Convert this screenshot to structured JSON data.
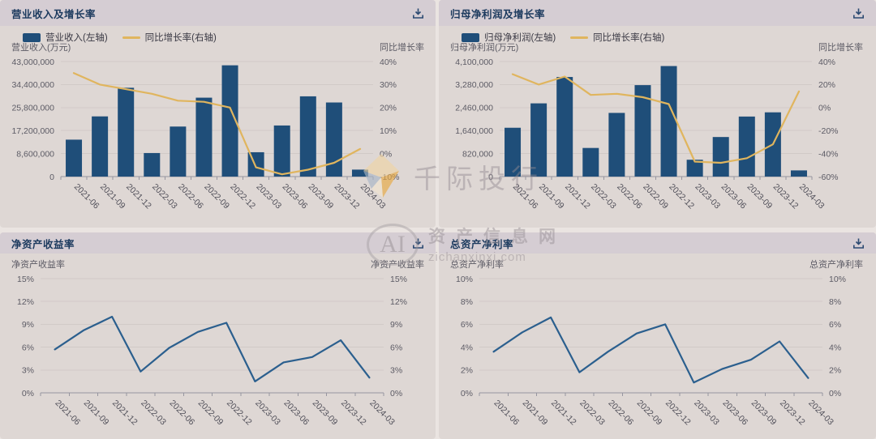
{
  "colors": {
    "bar": "#1f4e79",
    "growth_line": "#e0b55e",
    "ratio_line": "#2b5f8e",
    "panel_header_bg": "#d5cdd3",
    "panel_body_bg": "#ded7d4",
    "page_bg": "#eae4e1",
    "title_text": "#1c3a5e",
    "grid_line": "#d1cac7",
    "axis_line": "#96959f",
    "tick_text": "#5c5b65",
    "download_icon": "#2c4a72",
    "watermark_text": "#a89ea4",
    "watermark_orange": "#e9a940",
    "watermark_cream": "#f0d4a4",
    "watermark_blue": "#a9b6c6"
  },
  "download_label": "download",
  "watermarks": {
    "qianji_text": "千际投行",
    "ai_label": "AI",
    "site_name": "资产信息网",
    "site_url": "zichanxinxi.com"
  },
  "chart_data": [
    {
      "type": "bar",
      "title": "营业收入及增长率",
      "categories": [
        "2021-06",
        "2021-09",
        "2021-12",
        "2022-03",
        "2022-06",
        "2022-09",
        "2022-12",
        "2023-03",
        "2023-06",
        "2023-09",
        "2023-12",
        "2024-03"
      ],
      "series": [
        {
          "name": "营业收入(左轴)",
          "kind": "bar",
          "axis": "left",
          "values": [
            13800000,
            22500000,
            33200000,
            8800000,
            18700000,
            29500000,
            41600000,
            9100000,
            19100000,
            30000000,
            27700000,
            2600000
          ]
        },
        {
          "name": "同比增长率(右轴)",
          "kind": "line",
          "axis": "right",
          "values": [
            35,
            30,
            28,
            26,
            23,
            22.5,
            20,
            -6,
            -9,
            -7,
            -4,
            2
          ]
        }
      ],
      "left_axis": {
        "label": "营业收入(万元)",
        "min": 0,
        "max": 43000000,
        "ticks": [
          "43,000,000",
          "34,400,000",
          "25,800,000",
          "17,200,000",
          "8,600,000",
          "0"
        ]
      },
      "right_axis": {
        "label": "同比增长率",
        "min": -10,
        "max": 40,
        "ticks": [
          "40%",
          "30%",
          "20%",
          "10%",
          "0%",
          "-10%"
        ]
      },
      "legend_position": "top-left",
      "grid": true
    },
    {
      "type": "bar",
      "title": "归母净利润及增长率",
      "categories": [
        "2021-06",
        "2021-09",
        "2021-12",
        "2022-03",
        "2022-06",
        "2022-09",
        "2022-12",
        "2023-03",
        "2023-06",
        "2023-09",
        "2023-12",
        "2024-03"
      ],
      "series": [
        {
          "name": "归母净利润(左轴)",
          "kind": "bar",
          "axis": "left",
          "values": [
            1740000,
            2610000,
            3550000,
            1020000,
            2270000,
            3260000,
            3940000,
            600000,
            1410000,
            2140000,
            2290000,
            220000
          ]
        },
        {
          "name": "同比增长率(右轴)",
          "kind": "line",
          "axis": "right",
          "values": [
            29,
            20,
            27,
            11,
            12,
            9,
            3,
            -47,
            -48,
            -44,
            -32,
            14
          ]
        }
      ],
      "left_axis": {
        "label": "归母净利润(万元)",
        "min": 0,
        "max": 4100000,
        "ticks": [
          "4,100,000",
          "3,280,000",
          "2,460,000",
          "1,640,000",
          "820,000",
          "0"
        ]
      },
      "right_axis": {
        "label": "同比增长率",
        "min": -60,
        "max": 40,
        "ticks": [
          "40%",
          "20%",
          "0%",
          "-20%",
          "-40%",
          "-60%"
        ]
      },
      "legend_position": "top-left",
      "grid": true
    },
    {
      "type": "line",
      "title": "净资产收益率",
      "categories": [
        "2021-06",
        "2021-09",
        "2021-12",
        "2022-03",
        "2022-06",
        "2022-09",
        "2022-12",
        "2023-03",
        "2023-06",
        "2023-09",
        "2023-12",
        "2024-03"
      ],
      "series": [
        {
          "name": "净资产收益率",
          "kind": "line",
          "axis": "left",
          "values": [
            5.7,
            8.2,
            10.0,
            2.8,
            5.9,
            8.0,
            9.2,
            1.5,
            4.0,
            4.7,
            6.9,
            2.0
          ]
        }
      ],
      "left_axis": {
        "label": "净资产收益率",
        "min": 0,
        "max": 15,
        "ticks": [
          "15%",
          "12%",
          "9%",
          "6%",
          "3%",
          "0%"
        ]
      },
      "right_axis": {
        "label": "净资产收益率",
        "min": 0,
        "max": 15,
        "ticks": [
          "15%",
          "12%",
          "9%",
          "6%",
          "3%",
          "0%"
        ]
      },
      "grid": true
    },
    {
      "type": "line",
      "title": "总资产净利率",
      "categories": [
        "2021-06",
        "2021-09",
        "2021-12",
        "2022-03",
        "2022-06",
        "2022-09",
        "2022-12",
        "2023-03",
        "2023-06",
        "2023-09",
        "2023-12",
        "2024-03"
      ],
      "series": [
        {
          "name": "总资产净利率",
          "kind": "line",
          "axis": "left",
          "values": [
            3.6,
            5.3,
            6.6,
            1.8,
            3.6,
            5.2,
            6.0,
            0.9,
            2.1,
            2.9,
            4.5,
            1.3
          ]
        }
      ],
      "left_axis": {
        "label": "总资产净利率",
        "min": 0,
        "max": 10,
        "ticks": [
          "10%",
          "8%",
          "6%",
          "4%",
          "2%",
          "0%"
        ]
      },
      "right_axis": {
        "label": "总资产净利率",
        "min": 0,
        "max": 10,
        "ticks": [
          "10%",
          "8%",
          "6%",
          "4%",
          "2%",
          "0%"
        ]
      },
      "grid": true
    }
  ]
}
